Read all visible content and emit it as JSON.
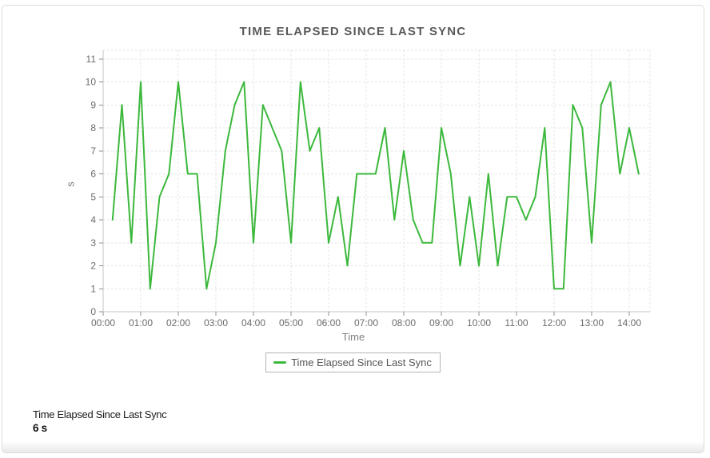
{
  "page": {
    "title": "TIME ELAPSED SINCE LAST SYNC"
  },
  "legend": {
    "label": "Time Elapsed Since Last Sync"
  },
  "footer": {
    "metric_label": "Time Elapsed Since Last Sync",
    "current_value": "6 s"
  },
  "colors": {
    "series_green": "#3cb83c",
    "title_gray": "#58595b",
    "tick_label_gray": "#6b6b6b",
    "axis_gray": "#c6c6c6",
    "tick_mark_gray": "#8f8f8f",
    "grid_gray": "#e3e3e3",
    "legend_border": "#b5b5b5"
  },
  "chart_data": {
    "type": "line",
    "title": "TIME ELAPSED SINCE LAST SYNC",
    "xlabel": "Time",
    "ylabel": "s",
    "ylim": [
      0,
      11
    ],
    "y_ticks": [
      0,
      1,
      2,
      3,
      4,
      5,
      6,
      7,
      8,
      9,
      10,
      11
    ],
    "x_tick_hours": [
      0,
      1,
      2,
      3,
      4,
      5,
      6,
      7,
      8,
      9,
      10,
      11,
      12,
      13,
      14
    ],
    "x_tick_labels": [
      "00:00",
      "01:00",
      "02:00",
      "03:00",
      "04:00",
      "05:00",
      "06:00",
      "07:00",
      "08:00",
      "09:00",
      "10:00",
      "11:00",
      "12:00",
      "13:00",
      "14:00"
    ],
    "x_axis_end_hour": 14.55,
    "sample_start_hour": 0.25,
    "sample_step_hours": 0.25,
    "grid": true,
    "legend_position": "bottom",
    "series": [
      {
        "name": "Time Elapsed Since Last Sync",
        "color": "#3cb83c",
        "values": [
          4,
          9,
          3,
          10,
          1,
          5,
          6,
          10,
          6,
          6,
          1,
          3,
          7,
          9,
          10,
          3,
          9,
          8,
          7,
          3,
          10,
          7,
          8,
          3,
          5,
          2,
          6,
          6,
          6,
          8,
          4,
          7,
          4,
          3,
          3,
          8,
          6,
          2,
          5,
          2,
          6,
          2,
          5,
          5,
          4,
          5,
          8,
          1,
          1,
          9,
          8,
          3,
          9,
          10,
          6,
          8,
          6
        ]
      }
    ]
  }
}
